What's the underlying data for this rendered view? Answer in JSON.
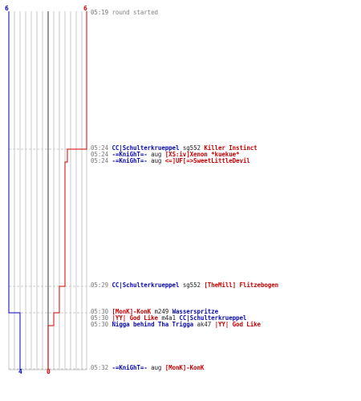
{
  "colors": {
    "blue_team": "#0000c0",
    "red_team": "#d00000",
    "grid": "#c8c8c8",
    "center_line": "#555555",
    "dashed_guide": "#c8c8c8",
    "time": "#777777"
  },
  "scores": {
    "blue_start": "6",
    "red_start": "6",
    "blue_end": "4",
    "red_end": "0"
  },
  "events": [
    {
      "time": "05:19",
      "parts": [
        {
          "text": "round started",
          "style": "gray"
        }
      ]
    },
    {
      "time": "05:24",
      "parts": [
        {
          "text": "CC|Schulterkrueppel",
          "style": "blue"
        },
        {
          "text": " sg552 ",
          "style": "plain"
        },
        {
          "text": "Killer Instinct",
          "style": "red"
        }
      ]
    },
    {
      "time": "05:24",
      "parts": [
        {
          "text": "-=KniGhT=-",
          "style": "blue"
        },
        {
          "text": " aug ",
          "style": "plain"
        },
        {
          "text": "[XS:iv]Xenon *kuekue*",
          "style": "red"
        }
      ]
    },
    {
      "time": "05:24",
      "parts": [
        {
          "text": "-=KniGhT=-",
          "style": "blue"
        },
        {
          "text": " aug ",
          "style": "plain"
        },
        {
          "text": "<=]UF[=>SweetLittleDevil",
          "style": "red"
        }
      ]
    },
    {
      "time": "05:29",
      "parts": [
        {
          "text": "CC|Schulterkrueppel",
          "style": "blue"
        },
        {
          "text": " sg552 ",
          "style": "plain"
        },
        {
          "text": "[TheMill] Flitzebogen",
          "style": "red"
        }
      ]
    },
    {
      "time": "05:30",
      "parts": [
        {
          "text": "[MonK]-KonK",
          "style": "red"
        },
        {
          "text": " m249 ",
          "style": "plain"
        },
        {
          "text": "Wasserspritze",
          "style": "blue"
        }
      ]
    },
    {
      "time": "05:30",
      "parts": [
        {
          "text": "|YY| God Like",
          "style": "red"
        },
        {
          "text": " m4a1 ",
          "style": "plain"
        },
        {
          "text": "CC|Schulterkrueppel",
          "style": "blue"
        }
      ]
    },
    {
      "time": "05:30",
      "parts": [
        {
          "text": "Nigga behind Tha Trigga",
          "style": "blue"
        },
        {
          "text": " ak47 ",
          "style": "plain"
        },
        {
          "text": "|YY| God Like",
          "style": "red"
        }
      ]
    },
    {
      "time": "05:32",
      "parts": [
        {
          "text": "-=KniGhT=-",
          "style": "blue"
        },
        {
          "text": " aug ",
          "style": "plain"
        },
        {
          "text": "[MonK]-KonK",
          "style": "red"
        }
      ]
    }
  ]
}
